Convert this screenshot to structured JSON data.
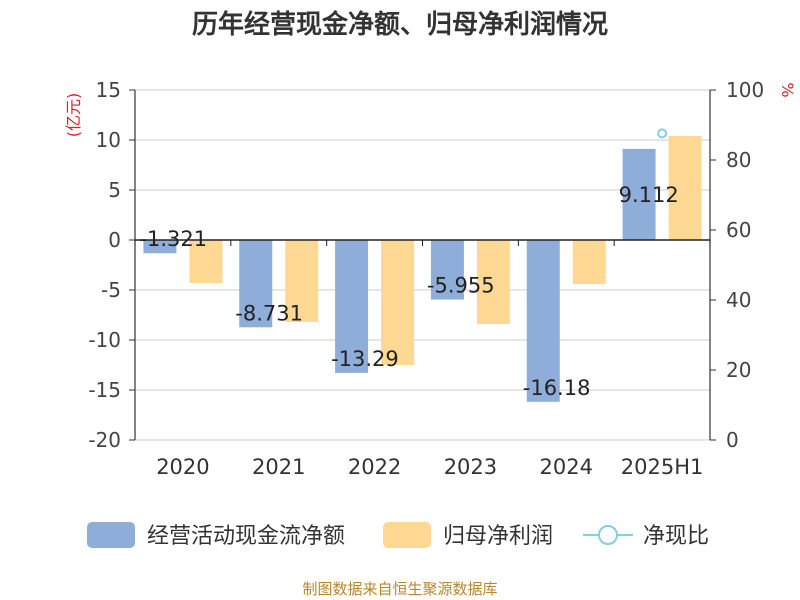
{
  "chart_data": {
    "type": "bar",
    "title": "历年经营现金净额、归母净利润情况",
    "categories": [
      "2020",
      "2021",
      "2022",
      "2023",
      "2024",
      "2025H1"
    ],
    "left_axis_unit": "(亿元)",
    "right_axis_unit": "%",
    "left_ylim": [
      -20,
      15
    ],
    "left_ticks": [
      "15",
      "10",
      "5",
      "0",
      "-5",
      "-10",
      "-15",
      "-20"
    ],
    "right_ylim": [
      0,
      100
    ],
    "right_ticks": [
      "100",
      "80",
      "60",
      "40",
      "20",
      "0"
    ],
    "grid": true,
    "legend_position": "bottom",
    "series": [
      {
        "name": "经营活动现金流净额",
        "type": "bar",
        "axis": "left",
        "color": "#8eadd9",
        "values": [
          -1.321,
          -8.731,
          -13.29,
          -5.955,
          -16.18,
          9.112
        ],
        "labels": [
          "-1.321",
          "-8.731",
          "-13.29",
          "-5.955",
          "-16.18",
          "9.112"
        ]
      },
      {
        "name": "归母净利润",
        "type": "bar",
        "axis": "left",
        "color": "#ffd993",
        "values": [
          -4.3,
          -8.2,
          -12.5,
          -8.4,
          -4.4,
          10.4
        ]
      },
      {
        "name": "净现比",
        "type": "line",
        "axis": "right",
        "color": "#7fd0e0",
        "values": [
          null,
          null,
          null,
          null,
          null,
          87.6
        ]
      }
    ],
    "source": "制图数据来自恒生聚源数据库"
  }
}
